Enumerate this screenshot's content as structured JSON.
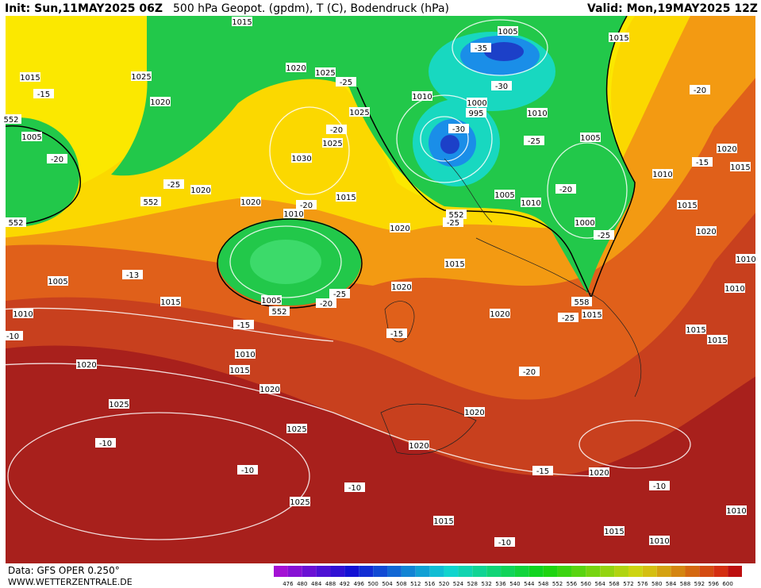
{
  "header": {
    "init": "Init: Sun,11MAY2025 06Z",
    "title": "500 hPa Geopot. (gpdm), T (C), Bodendruck (hPa)",
    "valid": "Valid: Mon,19MAY2025 12Z"
  },
  "footer": {
    "model": "Data: GFS OPER 0.250°",
    "site": "WWW.WETTERZENTRALE.DE"
  },
  "colorbar": {
    "labels": [
      476,
      480,
      484,
      488,
      492,
      496,
      500,
      504,
      508,
      512,
      516,
      520,
      524,
      528,
      532,
      536,
      540,
      544,
      548,
      552,
      556,
      560,
      564,
      568,
      572,
      576,
      580,
      584,
      588,
      592,
      596,
      600
    ]
  },
  "pressure_labels": [
    1015,
    1025,
    1015,
    1020,
    1020,
    1025,
    1005,
    1025,
    1030,
    1025,
    1020,
    1020,
    1010,
    1015,
    1005,
    1015,
    1010,
    1000,
    995,
    1010,
    1005,
    1005,
    1010,
    1000,
    1020,
    1010,
    1015,
    1015,
    1020,
    1010,
    1010,
    1020,
    1015,
    1020,
    1005,
    1015,
    1010,
    1005,
    1020,
    1015,
    1015,
    1015,
    1010,
    1015,
    1020,
    1020,
    1025,
    1020,
    1025,
    1020,
    1020,
    1025,
    1015,
    1010,
    1015,
    1010
  ],
  "temperature_labels": [
    -15,
    -20,
    -25,
    -25,
    -20,
    -35,
    -30,
    -30,
    -25,
    -20,
    -25,
    -20,
    -25,
    -20,
    -15,
    -13,
    -25,
    -20,
    -15,
    -15,
    -25,
    -20,
    -10,
    -10,
    -10,
    -10,
    -15,
    -10,
    -10
  ],
  "height_labels": [
    552,
    552,
    552,
    552,
    552,
    558
  ]
}
